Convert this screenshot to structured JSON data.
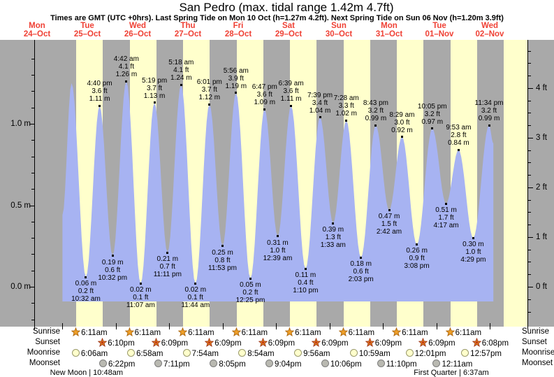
{
  "title": "San Pedro (max. tidal range 1.42m 4.7ft)",
  "subtitle": "Times are GMT (UTC +0hrs). Last Spring Tide on Mon 10 Oct (h=1.27m 4.2ft). Next Spring Tide on Sun 06 Nov (h=1.20m 3.9ft)",
  "colors": {
    "day_text": "#ef4135",
    "night_band": "#a9a9a9",
    "daylight_band": "#ffffcc",
    "tide_fill": "#a7b3f2",
    "sunrise_star_fill": "#f0a028",
    "sunrise_star_stroke": "#b06a10",
    "sunset_star_fill": "#e8861e",
    "sunset_star_stroke": "#a03818",
    "moonrise_fill": "#ffffcc",
    "moonrise_stroke": "#99996a",
    "moonset_fill": "#b9b9b1",
    "moonset_stroke": "#7d7d7d"
  },
  "chart_data": {
    "type": "area",
    "title": "San Pedro (max. tidal range 1.42m 4.7ft)",
    "x_axis": {
      "days": [
        {
          "name": "Mon",
          "date": "24–Oct"
        },
        {
          "name": "Tue",
          "date": "25–Oct"
        },
        {
          "name": "Wed",
          "date": "26–Oct"
        },
        {
          "name": "Thu",
          "date": "27–Oct"
        },
        {
          "name": "Fri",
          "date": "28–Oct"
        },
        {
          "name": "Sat",
          "date": "29–Oct"
        },
        {
          "name": "Sun",
          "date": "30–Oct"
        },
        {
          "name": "Mon",
          "date": "31–Oct"
        },
        {
          "name": "Tue",
          "date": "01–Nov"
        },
        {
          "name": "Wed",
          "date": "02–Nov"
        }
      ]
    },
    "y_axis_left": {
      "unit": "m",
      "labels": [
        {
          "value": 0.0,
          "text": "0.0 m"
        },
        {
          "value": 0.5,
          "text": "0.5 m"
        },
        {
          "value": 1.0,
          "text": "1.0 m"
        }
      ]
    },
    "y_axis_right": {
      "unit": "ft",
      "labels": [
        {
          "value_ft": 0,
          "text": "0 ft"
        },
        {
          "value_ft": 1,
          "text": "1 ft"
        },
        {
          "value_ft": 2,
          "text": "2 ft"
        },
        {
          "value_ft": 3,
          "text": "3 ft"
        },
        {
          "value_ft": 4,
          "text": "4 ft"
        }
      ]
    },
    "meters_range": [
      -0.24,
      1.52
    ],
    "tide_events": [
      {
        "day": 1,
        "time": "04:05",
        "m": 1.25,
        "type": "high",
        "labeled": false,
        "lines": []
      },
      {
        "day": 1,
        "time": "10:32",
        "m": 0.06,
        "type": "low",
        "labeled": true,
        "lines": [
          "0.06 m",
          "0.2 ft",
          "10:32 am"
        ]
      },
      {
        "day": 1,
        "time": "16:40",
        "m": 1.11,
        "type": "high",
        "labeled": true,
        "lines": [
          "4:40 pm",
          "3.6 ft",
          "1.11 m"
        ]
      },
      {
        "day": 1,
        "time": "22:32",
        "m": 0.19,
        "type": "low",
        "labeled": true,
        "lines": [
          "0.19 m",
          "0.6 ft",
          "10:32 pm"
        ]
      },
      {
        "day": 2,
        "time": "04:42",
        "m": 1.26,
        "type": "high",
        "labeled": true,
        "lines": [
          "4:42 am",
          "4.1 ft",
          "1.26 m"
        ]
      },
      {
        "day": 2,
        "time": "11:07",
        "m": 0.02,
        "type": "low",
        "labeled": true,
        "lines": [
          "0.02 m",
          "0.1 ft",
          "11:07 am"
        ]
      },
      {
        "day": 2,
        "time": "17:19",
        "m": 1.13,
        "type": "high",
        "labeled": true,
        "lines": [
          "5:19 pm",
          "3.7 ft",
          "1.13 m"
        ]
      },
      {
        "day": 2,
        "time": "23:11",
        "m": 0.21,
        "type": "low",
        "labeled": true,
        "lines": [
          "0.21 m",
          "0.7 ft",
          "11:11 pm"
        ]
      },
      {
        "day": 3,
        "time": "05:18",
        "m": 1.24,
        "type": "high",
        "labeled": true,
        "lines": [
          "5:18 am",
          "4.1 ft",
          "1.24 m"
        ]
      },
      {
        "day": 3,
        "time": "11:44",
        "m": 0.02,
        "type": "low",
        "labeled": true,
        "lines": [
          "0.02 m",
          "0.1 ft",
          "11:44 am"
        ]
      },
      {
        "day": 3,
        "time": "18:01",
        "m": 1.12,
        "type": "high",
        "labeled": true,
        "lines": [
          "6:01 pm",
          "3.7 ft",
          "1.12 m"
        ]
      },
      {
        "day": 3,
        "time": "23:53",
        "m": 0.25,
        "type": "low",
        "labeled": true,
        "lines": [
          "0.25 m",
          "0.8 ft",
          "11:53 pm"
        ]
      },
      {
        "day": 4,
        "time": "05:56",
        "m": 1.19,
        "type": "high",
        "labeled": true,
        "lines": [
          "5:56 am",
          "3.9 ft",
          "1.19 m"
        ]
      },
      {
        "day": 4,
        "time": "12:25",
        "m": 0.05,
        "type": "low",
        "labeled": true,
        "lines": [
          "0.05 m",
          "0.2 ft",
          "12:25 pm"
        ]
      },
      {
        "day": 4,
        "time": "18:47",
        "m": 1.09,
        "type": "high",
        "labeled": true,
        "lines": [
          "6:47 pm",
          "3.6 ft",
          "1.09 m"
        ]
      },
      {
        "day": 5,
        "time": "00:39",
        "m": 0.31,
        "type": "low",
        "labeled": true,
        "lines": [
          "0.31 m",
          "1.0 ft",
          "12:39 am"
        ]
      },
      {
        "day": 5,
        "time": "06:39",
        "m": 1.11,
        "type": "high",
        "labeled": true,
        "lines": [
          "6:39 am",
          "3.6 ft",
          "1.11 m"
        ]
      },
      {
        "day": 5,
        "time": "13:10",
        "m": 0.11,
        "type": "low",
        "labeled": true,
        "lines": [
          "0.11 m",
          "0.4 ft",
          "1:10 pm"
        ]
      },
      {
        "day": 5,
        "time": "19:39",
        "m": 1.04,
        "type": "high",
        "labeled": true,
        "lines": [
          "7:39 pm",
          "3.4 ft",
          "1.04 m"
        ]
      },
      {
        "day": 6,
        "time": "01:33",
        "m": 0.39,
        "type": "low",
        "labeled": true,
        "lines": [
          "0.39 m",
          "1.3 ft",
          "1:33 am"
        ]
      },
      {
        "day": 6,
        "time": "07:28",
        "m": 1.02,
        "type": "high",
        "labeled": true,
        "lines": [
          "7:28 am",
          "3.3 ft",
          "1.02 m"
        ]
      },
      {
        "day": 6,
        "time": "14:03",
        "m": 0.18,
        "type": "low",
        "labeled": true,
        "lines": [
          "0.18 m",
          "0.6 ft",
          "2:03 pm"
        ]
      },
      {
        "day": 6,
        "time": "20:43",
        "m": 0.99,
        "type": "high",
        "labeled": true,
        "lines": [
          "8:43 pm",
          "3.2 ft",
          "0.99 m"
        ]
      },
      {
        "day": 7,
        "time": "02:42",
        "m": 0.47,
        "type": "low",
        "labeled": true,
        "lines": [
          "0.47 m",
          "1.5 ft",
          "2:42 am"
        ]
      },
      {
        "day": 7,
        "time": "08:29",
        "m": 0.92,
        "type": "high",
        "labeled": true,
        "lines": [
          "8:29 am",
          "3.0 ft",
          "0.92 m"
        ]
      },
      {
        "day": 7,
        "time": "15:08",
        "m": 0.26,
        "type": "low",
        "labeled": true,
        "lines": [
          "0.26 m",
          "0.9 ft",
          "3:08 pm"
        ]
      },
      {
        "day": 7,
        "time": "22:05",
        "m": 0.97,
        "type": "high",
        "labeled": true,
        "lines": [
          "10:05 pm",
          "3.2 ft",
          "0.97 m"
        ]
      },
      {
        "day": 8,
        "time": "04:17",
        "m": 0.51,
        "type": "low",
        "labeled": true,
        "lines": [
          "0.51 m",
          "1.7 ft",
          "4:17 am"
        ]
      },
      {
        "day": 8,
        "time": "09:53",
        "m": 0.84,
        "type": "high",
        "labeled": true,
        "lines": [
          "9:53 am",
          "2.8 ft",
          "0.84 m"
        ]
      },
      {
        "day": 8,
        "time": "16:29",
        "m": 0.3,
        "type": "low",
        "labeled": true,
        "lines": [
          "0.30 m",
          "1.0 ft",
          "4:29 pm"
        ]
      },
      {
        "day": 8,
        "time": "23:34",
        "m": 0.99,
        "type": "high",
        "labeled": true,
        "lines": [
          "11:34 pm",
          "3.2 ft",
          "0.99 m"
        ]
      }
    ],
    "curve_edges": {
      "start": {
        "day": 1,
        "time": "00:00",
        "m": 0.44
      },
      "end": {
        "day": 9,
        "time": "01:30",
        "m": 0.88
      }
    },
    "daylight_bands": [
      {
        "day": 1,
        "sunrise": "06:11",
        "sunset": "18:10"
      },
      {
        "day": 2,
        "sunrise": "06:11",
        "sunset": "18:09"
      },
      {
        "day": 3,
        "sunrise": "06:11",
        "sunset": "18:09"
      },
      {
        "day": 4,
        "sunrise": "06:11",
        "sunset": "18:09"
      },
      {
        "day": 5,
        "sunrise": "06:11",
        "sunset": "18:09"
      },
      {
        "day": 6,
        "sunrise": "06:11",
        "sunset": "18:09"
      },
      {
        "day": 7,
        "sunrise": "06:11",
        "sunset": "18:09"
      },
      {
        "day": 8,
        "sunrise": "06:11",
        "sunset": "18:08"
      },
      {
        "day": 9,
        "sunrise": "06:10",
        "sunset": "18:08"
      }
    ]
  },
  "astro": {
    "row_labels": [
      "Sunrise",
      "Sunset",
      "Moonrise",
      "Moonset"
    ],
    "sunrise": [
      {
        "day": 1,
        "time": "06:11",
        "text": "6:11am"
      },
      {
        "day": 2,
        "time": "06:11",
        "text": "6:11am"
      },
      {
        "day": 3,
        "time": "06:11",
        "text": "6:11am"
      },
      {
        "day": 4,
        "time": "06:11",
        "text": "6:11am"
      },
      {
        "day": 5,
        "time": "06:11",
        "text": "6:11am"
      },
      {
        "day": 6,
        "time": "06:11",
        "text": "6:11am"
      },
      {
        "day": 7,
        "time": "06:11",
        "text": "6:11am"
      },
      {
        "day": 8,
        "time": "06:11",
        "text": "6:11am"
      }
    ],
    "sunset": [
      {
        "day": 1,
        "time": "18:10",
        "text": "6:10pm"
      },
      {
        "day": 2,
        "time": "18:09",
        "text": "6:09pm"
      },
      {
        "day": 3,
        "time": "18:09",
        "text": "6:09pm"
      },
      {
        "day": 4,
        "time": "18:09",
        "text": "6:09pm"
      },
      {
        "day": 5,
        "time": "18:09",
        "text": "6:09pm"
      },
      {
        "day": 6,
        "time": "18:09",
        "text": "6:09pm"
      },
      {
        "day": 7,
        "time": "18:09",
        "text": "6:09pm"
      },
      {
        "day": 8,
        "time": "18:08",
        "text": "6:08pm"
      }
    ],
    "moonrise": [
      {
        "day": 1,
        "time": "06:06",
        "text": "6:06am"
      },
      {
        "day": 2,
        "time": "06:58",
        "text": "6:58am"
      },
      {
        "day": 3,
        "time": "07:54",
        "text": "7:54am"
      },
      {
        "day": 4,
        "time": "08:54",
        "text": "8:54am"
      },
      {
        "day": 5,
        "time": "09:56",
        "text": "9:56am"
      },
      {
        "day": 6,
        "time": "10:59",
        "text": "10:59am"
      },
      {
        "day": 7,
        "time": "12:01",
        "text": "12:01pm"
      },
      {
        "day": 8,
        "time": "12:57",
        "text": "12:57pm"
      }
    ],
    "moonset": [
      {
        "day": 1,
        "time": "18:22",
        "text": "6:22pm"
      },
      {
        "day": 2,
        "time": "19:11",
        "text": "7:11pm"
      },
      {
        "day": 3,
        "time": "20:05",
        "text": "8:05pm"
      },
      {
        "day": 4,
        "time": "21:04",
        "text": "9:04pm"
      },
      {
        "day": 5,
        "time": "22:06",
        "text": "10:06pm"
      },
      {
        "day": 6,
        "time": "23:10",
        "text": "11:10pm"
      },
      {
        "day": 8,
        "time": "00:11",
        "text": "12:11am"
      }
    ],
    "moon_phases": [
      {
        "day": 1,
        "time": "10:48",
        "text": "New Moon | 10:48am"
      },
      {
        "day": 8,
        "time": "06:37",
        "text": "First Quarter | 6:37am"
      }
    ]
  }
}
